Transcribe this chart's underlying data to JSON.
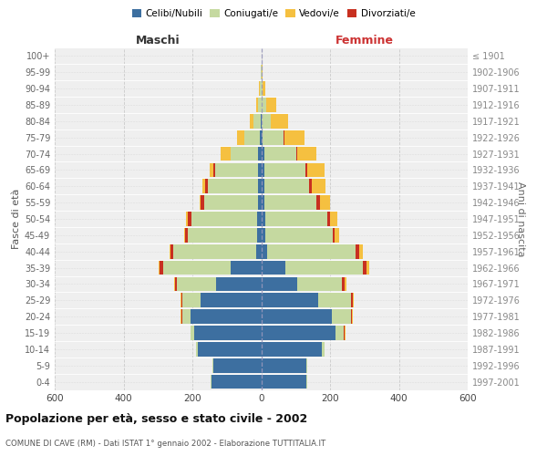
{
  "age_groups": [
    "0-4",
    "5-9",
    "10-14",
    "15-19",
    "20-24",
    "25-29",
    "30-34",
    "35-39",
    "40-44",
    "45-49",
    "50-54",
    "55-59",
    "60-64",
    "65-69",
    "70-74",
    "75-79",
    "80-84",
    "85-89",
    "90-94",
    "95-99",
    "100+"
  ],
  "birth_years": [
    "1997-2001",
    "1992-1996",
    "1987-1991",
    "1982-1986",
    "1977-1981",
    "1972-1976",
    "1967-1971",
    "1962-1966",
    "1957-1961",
    "1952-1956",
    "1947-1951",
    "1942-1946",
    "1937-1941",
    "1932-1936",
    "1927-1931",
    "1922-1926",
    "1917-1921",
    "1912-1916",
    "1907-1911",
    "1902-1906",
    "≤ 1901"
  ],
  "male": {
    "celibi": [
      145,
      140,
      185,
      195,
      205,
      175,
      130,
      90,
      15,
      12,
      12,
      10,
      10,
      10,
      8,
      5,
      2,
      0,
      0,
      0,
      0
    ],
    "coniugati": [
      2,
      2,
      5,
      10,
      25,
      55,
      115,
      195,
      240,
      200,
      190,
      155,
      145,
      125,
      80,
      45,
      20,
      10,
      5,
      2,
      0
    ],
    "vedovi": [
      0,
      0,
      0,
      0,
      2,
      2,
      2,
      2,
      2,
      3,
      4,
      5,
      8,
      10,
      30,
      20,
      10,
      5,
      2,
      0,
      0
    ],
    "divorziati": [
      0,
      0,
      0,
      0,
      2,
      3,
      5,
      10,
      8,
      10,
      12,
      10,
      8,
      5,
      0,
      0,
      0,
      0,
      0,
      0,
      0
    ]
  },
  "female": {
    "nubili": [
      130,
      130,
      175,
      215,
      205,
      165,
      105,
      70,
      18,
      12,
      12,
      10,
      10,
      8,
      8,
      5,
      2,
      0,
      0,
      0,
      0
    ],
    "coniugate": [
      5,
      5,
      10,
      25,
      55,
      95,
      130,
      225,
      255,
      195,
      180,
      150,
      130,
      120,
      95,
      60,
      25,
      15,
      5,
      2,
      0
    ],
    "vedove": [
      0,
      0,
      0,
      2,
      2,
      4,
      5,
      8,
      10,
      15,
      20,
      30,
      40,
      50,
      55,
      60,
      50,
      30,
      8,
      2,
      0
    ],
    "divorziate": [
      0,
      0,
      0,
      2,
      3,
      5,
      8,
      12,
      12,
      5,
      8,
      10,
      8,
      5,
      2,
      2,
      2,
      0,
      0,
      0,
      0
    ]
  },
  "colors": {
    "celibi_nubili": "#3D6FA0",
    "coniugati": "#C5D9A0",
    "vedovi": "#F5C040",
    "divorziati": "#C83020"
  },
  "title": "Popolazione per età, sesso e stato civile - 2002",
  "subtitle": "COMUNE DI CAVE (RM) - Dati ISTAT 1° gennaio 2002 - Elaborazione TUTTITALIA.IT",
  "xlabel_left": "Maschi",
  "xlabel_right": "Femmine",
  "ylabel_left": "Fasce di età",
  "ylabel_right": "Anni di nascita",
  "xlim": 600,
  "bg_color": "#ffffff",
  "plot_bg": "#efefef",
  "grid_color": "#cccccc"
}
